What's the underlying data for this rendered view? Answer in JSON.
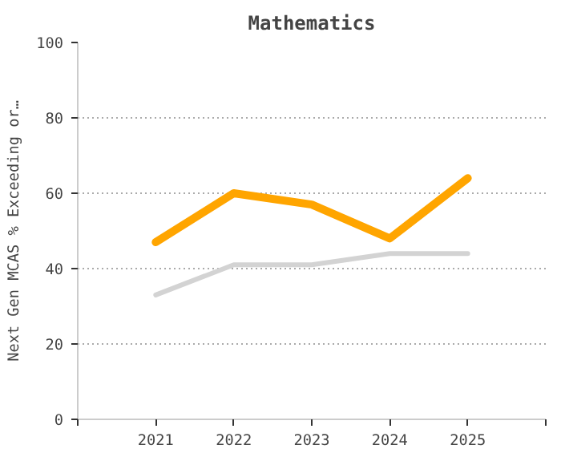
{
  "chart_data": {
    "type": "line",
    "title": "Mathematics",
    "ylabel": "Next Gen MCAS % Exceeding or…",
    "categories": [
      "2021",
      "2022",
      "2023",
      "2024",
      "2025"
    ],
    "series": [
      {
        "color": "#ffa500",
        "values": [
          47,
          60,
          57,
          48,
          64
        ]
      },
      {
        "color": "#d3d3d3",
        "values": [
          33,
          41,
          41,
          44,
          44
        ]
      }
    ],
    "ylim": [
      0,
      100
    ],
    "yticks": [
      0,
      20,
      40,
      60,
      80,
      100
    ],
    "grid": "y",
    "marker": "none",
    "line_style": "solid"
  }
}
